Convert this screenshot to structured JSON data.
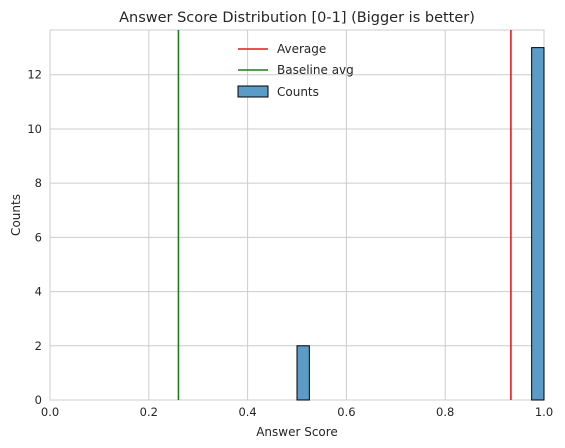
{
  "chart_data": {
    "type": "bar",
    "title": "Answer Score Distribution [0-1] (Bigger is better)",
    "xlabel": "Answer Score",
    "ylabel": "Counts",
    "xlim": [
      0,
      1
    ],
    "ylim": [
      0,
      13.65
    ],
    "xticks": [
      "0.0",
      "0.2",
      "0.4",
      "0.6",
      "0.8",
      "1.0"
    ],
    "xtick_values": [
      0,
      0.2,
      0.4,
      0.6,
      0.8,
      1.0
    ],
    "yticks": [
      "0",
      "2",
      "4",
      "6",
      "8",
      "10",
      "12"
    ],
    "ytick_values": [
      0,
      2,
      4,
      6,
      8,
      10,
      12
    ],
    "grid": true,
    "legend_position": "top-center",
    "bins": [
      {
        "x0": 0.5,
        "x1": 0.525,
        "count": 2
      },
      {
        "x0": 0.975,
        "x1": 1.0,
        "count": 13
      }
    ],
    "vlines": [
      {
        "name": "Average",
        "x": 0.933,
        "color": "#e41a1c"
      },
      {
        "name": "Baseline avg",
        "x": 0.26,
        "color": "#1a7f1a"
      }
    ],
    "bar_series_name": "Counts",
    "bar_color": "#5a9bc8",
    "bar_edge_color": "#000000"
  }
}
